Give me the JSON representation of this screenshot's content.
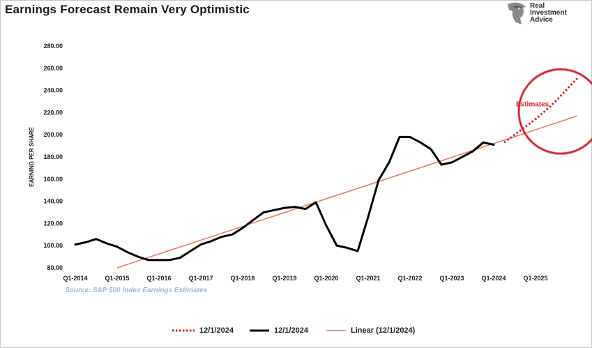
{
  "page": {
    "title": "Earnings Forecast Remain Very Optimistic",
    "logo": {
      "icon": "eagle-head-icon",
      "lines": [
        "Real",
        "Investment",
        "Advice"
      ]
    },
    "source": "Source: S&P 500 Index Earnings Estimates"
  },
  "chart_data": {
    "type": "line",
    "title": "Earnings Forecast Remain Very Optimistic",
    "ylabel": "EARNING PER SHARE",
    "xlabel": "",
    "ylim": [
      80,
      280
    ],
    "y_ticks": [
      "80.00",
      "100.00",
      "120.00",
      "140.00",
      "160.00",
      "180.00",
      "200.00",
      "220.00",
      "240.00",
      "260.00",
      "280.00"
    ],
    "x_ticks": [
      "Q1-2014",
      "Q1-2015",
      "Q1-2016",
      "Q1-2017",
      "Q1-2018",
      "Q1-2019",
      "Q1-2020",
      "Q1-2021",
      "Q1-2022",
      "Q1-2023",
      "Q1-2024",
      "Q1-2025"
    ],
    "grid": false,
    "legend_position": "bottom",
    "series": [
      {
        "name": "12/1/2024",
        "style": "dotted",
        "color": "#d0222a",
        "points": [
          [
            2024.25,
            193
          ],
          [
            2024.5,
            200
          ],
          [
            2024.75,
            207
          ],
          [
            2025.0,
            214
          ],
          [
            2025.25,
            222
          ],
          [
            2025.5,
            231
          ],
          [
            2025.75,
            241
          ],
          [
            2026.0,
            251
          ]
        ]
      },
      {
        "name": "12/1/2024",
        "style": "solid",
        "color": "#000000",
        "points": [
          [
            2014.0,
            101
          ],
          [
            2014.25,
            103
          ],
          [
            2014.5,
            106
          ],
          [
            2014.75,
            102
          ],
          [
            2015.0,
            99
          ],
          [
            2015.25,
            94
          ],
          [
            2015.5,
            90
          ],
          [
            2015.75,
            87
          ],
          [
            2016.0,
            87
          ],
          [
            2016.25,
            87
          ],
          [
            2016.5,
            89
          ],
          [
            2016.75,
            95
          ],
          [
            2017.0,
            101
          ],
          [
            2017.25,
            104
          ],
          [
            2017.5,
            108
          ],
          [
            2017.75,
            110
          ],
          [
            2018.0,
            116
          ],
          [
            2018.25,
            123
          ],
          [
            2018.5,
            130
          ],
          [
            2018.75,
            132
          ],
          [
            2019.0,
            134
          ],
          [
            2019.25,
            135
          ],
          [
            2019.5,
            133
          ],
          [
            2019.75,
            139
          ],
          [
            2020.0,
            118
          ],
          [
            2020.25,
            100
          ],
          [
            2020.5,
            98
          ],
          [
            2020.75,
            95
          ],
          [
            2021.0,
            126
          ],
          [
            2021.25,
            159
          ],
          [
            2021.5,
            175
          ],
          [
            2021.75,
            198
          ],
          [
            2022.0,
            198
          ],
          [
            2022.25,
            193
          ],
          [
            2022.5,
            187
          ],
          [
            2022.75,
            173
          ],
          [
            2023.0,
            175
          ],
          [
            2023.25,
            180
          ],
          [
            2023.5,
            185
          ],
          [
            2023.75,
            193
          ],
          [
            2024.0,
            191
          ]
        ]
      },
      {
        "name": "Linear (12/1/2024)",
        "style": "solid-thin",
        "color": "#e07a60",
        "points": [
          [
            2015.0,
            80
          ],
          [
            2026.0,
            217
          ]
        ]
      }
    ],
    "annotations": [
      {
        "text": "Estimates",
        "color": "#d0222a",
        "x": 2025.0,
        "y": 227
      }
    ],
    "highlight_ellipse": {
      "color": "#d0222a",
      "center": [
        2025.6,
        221
      ],
      "rx_years": 1.0,
      "ry_value": 38
    }
  },
  "legend": [
    {
      "label": "12/1/2024",
      "swatch": "dotted",
      "color": "#d0222a"
    },
    {
      "label": "12/1/2024",
      "swatch": "solid",
      "color": "#000000"
    },
    {
      "label": "Linear (12/1/2024)",
      "swatch": "solid-thin",
      "color": "#e07a60"
    }
  ]
}
